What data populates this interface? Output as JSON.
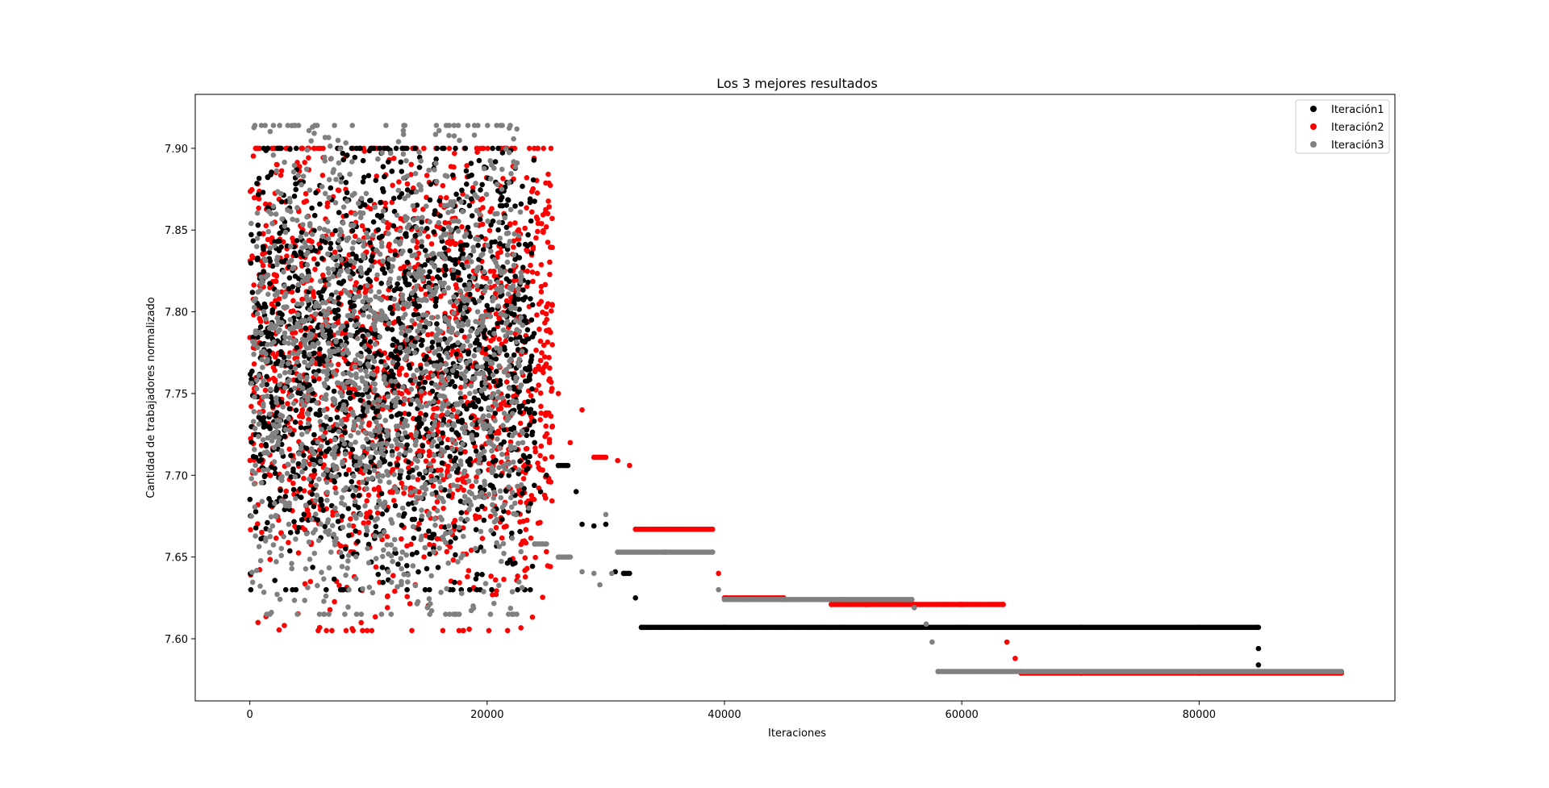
{
  "chart_data": {
    "type": "scatter",
    "title": "Los 3 mejores resultados",
    "xlabel": "Iteraciones",
    "ylabel": "Cantidad de trabajadores normalizado",
    "xlim": [
      -4600,
      96500
    ],
    "ylim": [
      7.562,
      7.933
    ],
    "x_ticks": [
      0,
      20000,
      40000,
      60000,
      80000
    ],
    "x_tick_labels": [
      "0",
      "20000",
      "40000",
      "60000",
      "80000"
    ],
    "y_ticks": [
      7.6,
      7.65,
      7.7,
      7.75,
      7.8,
      7.85,
      7.9
    ],
    "y_tick_labels": [
      "7.60",
      "7.65",
      "7.70",
      "7.75",
      "7.80",
      "7.85",
      "7.90"
    ],
    "grid": false,
    "legend_position": "top-right",
    "series": [
      {
        "name": "Iteración1",
        "color": "#000000",
        "noisy_phase": {
          "x_range": [
            0,
            24000
          ],
          "y_band": [
            7.63,
            7.9
          ],
          "center": 7.77
        },
        "x": [
          24000,
          24500,
          25000,
          26000,
          26800,
          27500,
          28000,
          29000,
          30000,
          30800,
          31500,
          32000,
          32500,
          33000,
          40000,
          50000,
          60000,
          70000,
          80000,
          85000,
          85000,
          85000
        ],
        "y": [
          7.72,
          7.69,
          7.7,
          7.706,
          7.706,
          7.69,
          7.67,
          7.669,
          7.67,
          7.641,
          7.64,
          7.64,
          7.625,
          7.607,
          7.607,
          7.607,
          7.607,
          7.607,
          7.607,
          7.607,
          7.594,
          7.584
        ]
      },
      {
        "name": "Iteración2",
        "color": "#ff0000",
        "noisy_phase": {
          "x_range": [
            0,
            25500
          ],
          "y_band": [
            7.605,
            7.9
          ],
          "center": 7.77
        },
        "x": [
          25500,
          26000,
          27000,
          28000,
          29000,
          30000,
          31000,
          32000,
          32500,
          35000,
          39000,
          39500,
          40000,
          45000,
          49000,
          52000,
          56000,
          60000,
          63500,
          63800,
          64500,
          65000,
          70000,
          80000,
          92000
        ],
        "y": [
          7.73,
          7.75,
          7.72,
          7.74,
          7.711,
          7.711,
          7.709,
          7.706,
          7.667,
          7.667,
          7.667,
          7.64,
          7.625,
          7.625,
          7.621,
          7.621,
          7.621,
          7.621,
          7.621,
          7.598,
          7.588,
          7.579,
          7.579,
          7.579,
          7.579
        ]
      },
      {
        "name": "Iteración3",
        "color": "#808080",
        "noisy_phase": {
          "x_range": [
            0,
            23000
          ],
          "y_band": [
            7.615,
            7.914
          ],
          "center": 7.77
        },
        "x": [
          23000,
          23500,
          24000,
          25000,
          26000,
          27000,
          28000,
          29000,
          29500,
          30000,
          30500,
          31000,
          35000,
          39000,
          39500,
          40000,
          45000,
          50000,
          55800,
          56000,
          57000,
          57500,
          58000,
          65000,
          75000,
          85000,
          92000
        ],
        "y": [
          7.72,
          7.68,
          7.658,
          7.658,
          7.65,
          7.65,
          7.641,
          7.64,
          7.633,
          7.676,
          7.64,
          7.653,
          7.653,
          7.653,
          7.63,
          7.624,
          7.624,
          7.624,
          7.624,
          7.619,
          7.609,
          7.598,
          7.58,
          7.58,
          7.58,
          7.58,
          7.58
        ]
      }
    ]
  }
}
